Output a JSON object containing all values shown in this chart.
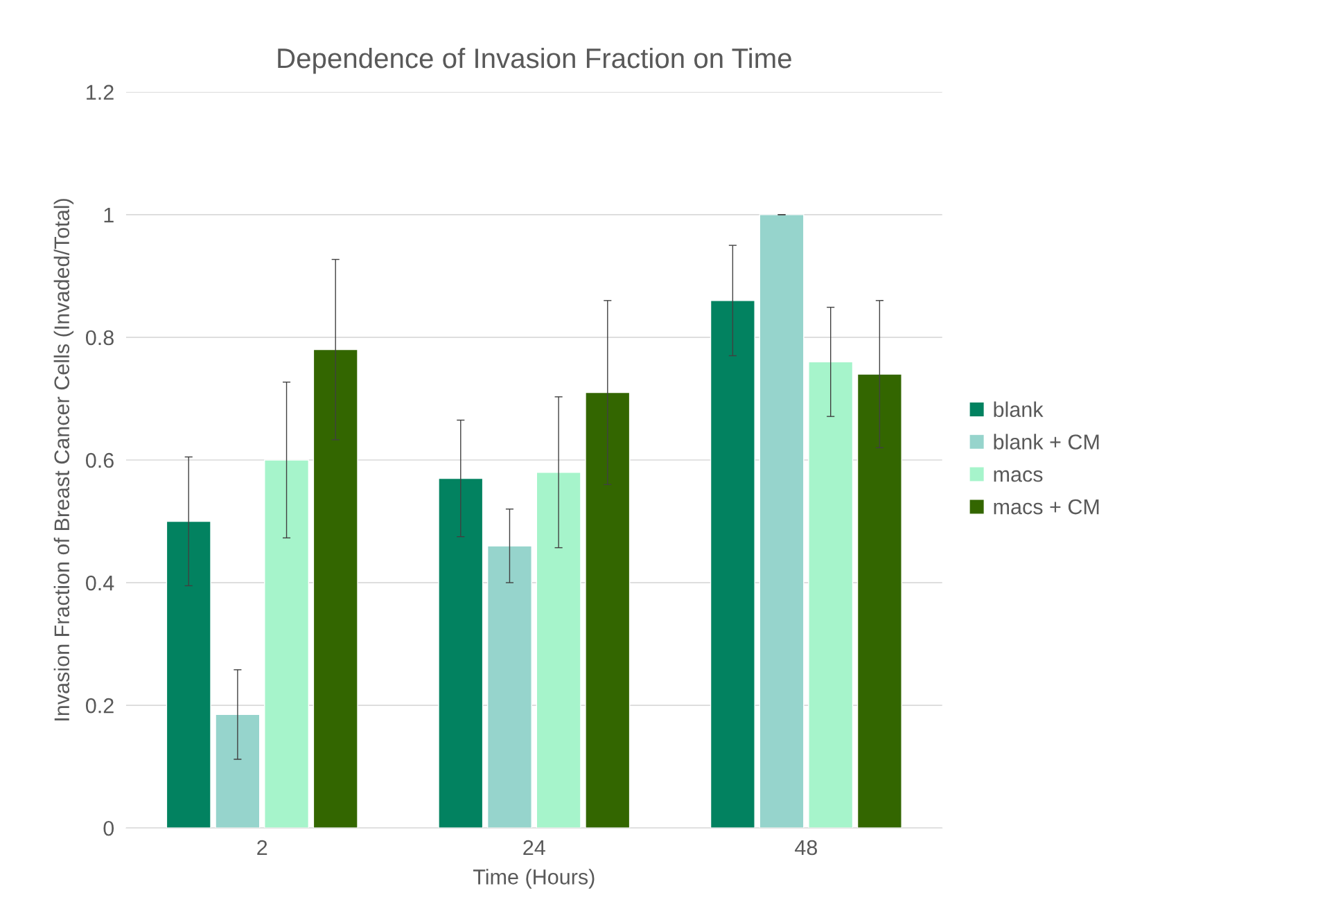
{
  "chart_data": {
    "type": "bar",
    "title": "Dependence of Invasion Fraction on Time",
    "xlabel": "Time (Hours)",
    "ylabel": "Invasion Fraction of Breast Cancer Cells (Invaded/Total)",
    "categories": [
      "2",
      "24",
      "48"
    ],
    "series": [
      {
        "name": "blank",
        "color": "#028260",
        "values": [
          0.5,
          0.57,
          0.86
        ],
        "errors": [
          0.105,
          0.095,
          0.09
        ]
      },
      {
        "name": "blank + CM",
        "color": "#96d4cc",
        "values": [
          0.185,
          0.46,
          1.0
        ],
        "errors": [
          0.073,
          0.06,
          0
        ]
      },
      {
        "name": "macs",
        "color": "#a6f4cb",
        "values": [
          0.6,
          0.58,
          0.76
        ],
        "errors": [
          0.127,
          0.123,
          0.089
        ]
      },
      {
        "name": "macs + CM",
        "color": "#336600",
        "values": [
          0.78,
          0.71,
          0.74
        ],
        "errors": [
          0.147,
          0.15,
          0.12
        ]
      }
    ],
    "ylim": [
      0,
      1.2
    ],
    "yticks": [
      0,
      0.2,
      0.4,
      0.6,
      0.8,
      1,
      1.2
    ],
    "grid": "y",
    "legend": "right"
  }
}
